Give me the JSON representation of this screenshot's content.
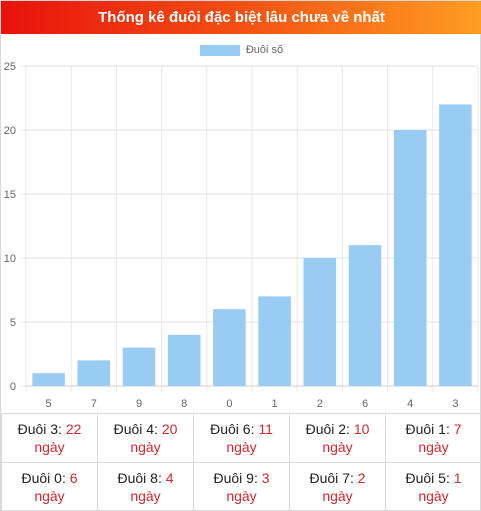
{
  "header": {
    "title": "Thống kê đuôi đặc biệt lâu chưa về nhất"
  },
  "colors": {
    "bar": "#99ccf3",
    "header_start": "#e8120c",
    "header_end": "#ff9d22",
    "accent_text": "#d6262f"
  },
  "chart_data": {
    "type": "bar",
    "categories": [
      "5",
      "7",
      "9",
      "8",
      "0",
      "1",
      "2",
      "6",
      "4",
      "3"
    ],
    "series": [
      {
        "name": "Đuôi số",
        "values": [
          1,
          2,
          3,
          4,
          6,
          7,
          10,
          11,
          20,
          22
        ]
      }
    ],
    "ylim": [
      0,
      25
    ],
    "yticks": [
      0,
      5,
      10,
      15,
      20,
      25
    ],
    "grid": true,
    "legend": "top-center"
  },
  "stats": {
    "unit": "ngày",
    "rows": [
      [
        {
          "label": "Đuôi 3:",
          "value": "22"
        },
        {
          "label": "Đuôi 4:",
          "value": "20"
        },
        {
          "label": "Đuôi 6:",
          "value": "11"
        },
        {
          "label": "Đuôi 2:",
          "value": "10"
        },
        {
          "label": "Đuôi 1:",
          "value": "7"
        }
      ],
      [
        {
          "label": "Đuôi 0:",
          "value": "6"
        },
        {
          "label": "Đuôi 8:",
          "value": "4"
        },
        {
          "label": "Đuôi 9:",
          "value": "3"
        },
        {
          "label": "Đuôi 7:",
          "value": "2"
        },
        {
          "label": "Đuôi 5:",
          "value": "1"
        }
      ]
    ]
  }
}
